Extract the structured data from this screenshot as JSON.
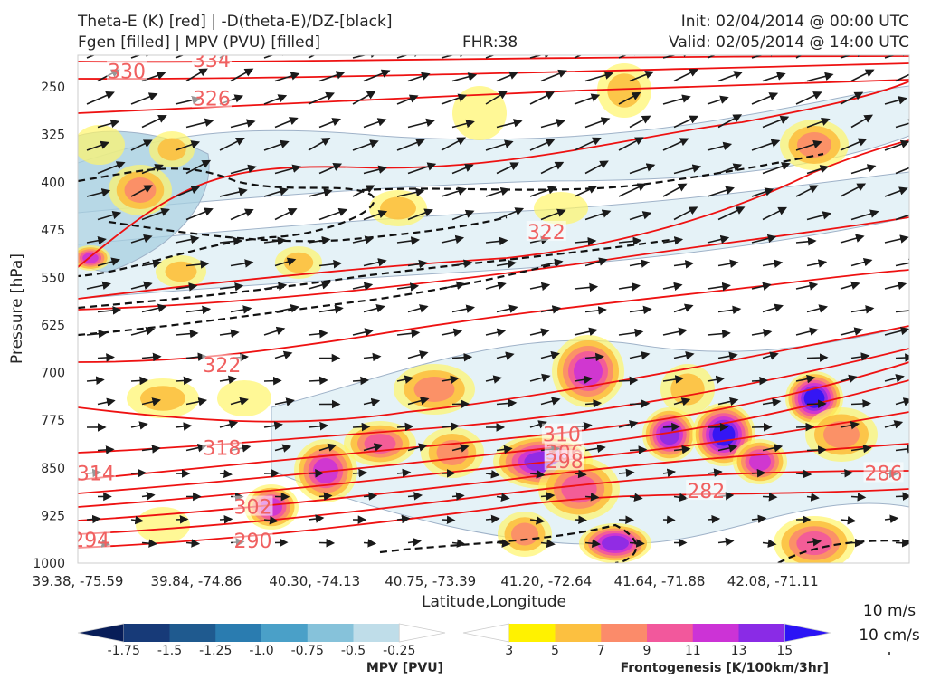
{
  "header": {
    "title_left_1": "Theta-E (K) [red] | -D(theta-E)/DZ-[black]",
    "title_left_2": "Fgen [filled] | MPV (PVU) [filled]",
    "title_center": "FHR:38",
    "title_right_1": "Init: 02/04/2014 @ 00:00 UTC",
    "title_right_2": "Valid: 02/05/2014 @ 14:00 UTC"
  },
  "chart_data": {
    "type": "cross-section",
    "xlabel": "Latitude,Longitude",
    "ylabel": "Pressure [hPa]",
    "x_ticks": [
      "39.38, -75.59",
      "39.84, -74.86",
      "40.30, -74.13",
      "40.75, -73.39",
      "41.20, -72.64",
      "41.64, -71.88",
      "42.08, -71.11"
    ],
    "y_ticks": [
      250,
      325,
      400,
      475,
      550,
      625,
      700,
      775,
      850,
      925,
      1000
    ],
    "ylim": [
      1000,
      200
    ],
    "y_inverted": true,
    "theta_e_labels": [
      {
        "value": "334",
        "lat": 39.9,
        "p": 207
      },
      {
        "value": "330",
        "lat": 39.57,
        "p": 225
      },
      {
        "value": "326",
        "lat": 39.9,
        "p": 268
      },
      {
        "value": "322",
        "lat": 41.2,
        "p": 478
      },
      {
        "value": "322",
        "lat": 39.94,
        "p": 688
      },
      {
        "value": "318",
        "lat": 39.94,
        "p": 818
      },
      {
        "value": "314",
        "lat": 39.45,
        "p": 858
      },
      {
        "value": "310",
        "lat": 41.26,
        "p": 797
      },
      {
        "value": "306",
        "lat": 41.27,
        "p": 825
      },
      {
        "value": "302",
        "lat": 40.06,
        "p": 911
      },
      {
        "value": "298",
        "lat": 41.27,
        "p": 839
      },
      {
        "value": "294",
        "lat": 39.43,
        "p": 963
      },
      {
        "value": "290",
        "lat": 40.06,
        "p": 964
      },
      {
        "value": "286",
        "lat": 42.51,
        "p": 858
      },
      {
        "value": "282",
        "lat": 41.82,
        "p": 886
      }
    ],
    "wind_vectors": {
      "reference_horizontal": "10 m/s",
      "reference_vertical": "10 cm/s"
    },
    "colorbars": [
      {
        "label": "MPV [PVU]",
        "ticks": [
          "-1.75",
          "-1.5",
          "-1.25",
          "-1.0",
          "-0.75",
          "-0.5",
          "-0.25"
        ],
        "colors": [
          "#081d58",
          "#173a78",
          "#1f5a8f",
          "#2a7cb0",
          "#4aa0c8",
          "#86c2da",
          "#bfdde9",
          "#ffffff"
        ]
      },
      {
        "label": "Frontogenesis [K/100km/3hr]",
        "ticks": [
          "3",
          "5",
          "7",
          "9",
          "11",
          "13",
          "15"
        ],
        "colors": [
          "#ffffff",
          "#fff200",
          "#fcc040",
          "#fb8b6a",
          "#f2589c",
          "#cc33d6",
          "#8a2be6",
          "#2b14f5"
        ]
      }
    ]
  }
}
